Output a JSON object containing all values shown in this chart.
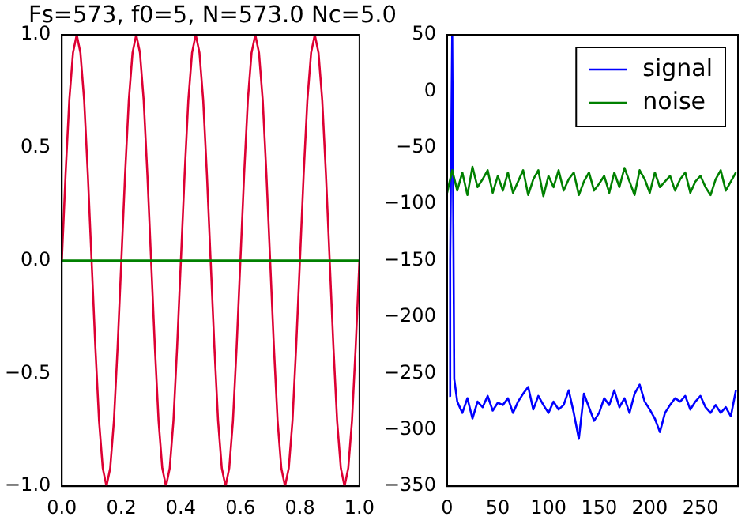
{
  "chart_data": [
    {
      "type": "line",
      "title": "Fs=573, f0=5, N=573.0 Nc=5.0",
      "xlim": [
        0,
        1
      ],
      "ylim": [
        -1,
        1
      ],
      "xticks": [
        {
          "value": 0,
          "label": "0.0"
        },
        {
          "value": 0.2,
          "label": "0.2"
        },
        {
          "value": 0.4,
          "label": "0.4"
        },
        {
          "value": 0.6,
          "label": "0.6"
        },
        {
          "value": 0.8,
          "label": "0.8"
        },
        {
          "value": 1,
          "label": "1.0"
        }
      ],
      "yticks": [
        {
          "value": -1,
          "label": "−1.0"
        },
        {
          "value": -0.5,
          "label": "−0.5"
        },
        {
          "value": 0,
          "label": "0.0"
        },
        {
          "value": 0.5,
          "label": "0.5"
        },
        {
          "value": 1,
          "label": "1.0"
        }
      ],
      "series": [
        {
          "color": "#dd0033",
          "x": [
            0,
            0.0125,
            0.025,
            0.0375,
            0.05,
            0.0625,
            0.075,
            0.0875,
            0.1,
            0.1125,
            0.125,
            0.1375,
            0.15,
            0.1625,
            0.175,
            0.1875,
            0.2,
            0.2125,
            0.225,
            0.2375,
            0.25,
            0.2625,
            0.275,
            0.2875,
            0.3,
            0.3125,
            0.325,
            0.3375,
            0.35,
            0.3625,
            0.375,
            0.3875,
            0.4,
            0.4125,
            0.425,
            0.4375,
            0.45,
            0.4625,
            0.475,
            0.4875,
            0.5,
            0.5125,
            0.525,
            0.5375,
            0.55,
            0.5625,
            0.575,
            0.5875,
            0.6,
            0.6125,
            0.625,
            0.6375,
            0.65,
            0.6625,
            0.675,
            0.6875,
            0.7,
            0.7125,
            0.725,
            0.7375,
            0.75,
            0.7625,
            0.775,
            0.7875,
            0.8,
            0.8125,
            0.825,
            0.8375,
            0.85,
            0.8625,
            0.875,
            0.8875,
            0.9,
            0.9125,
            0.925,
            0.9375,
            0.95,
            0.9625,
            0.975,
            0.9875,
            1
          ],
          "values": [
            0,
            0.38,
            0.71,
            0.92,
            1,
            0.92,
            0.71,
            0.38,
            0,
            -0.38,
            -0.71,
            -0.92,
            -1,
            -0.92,
            -0.71,
            -0.38,
            0,
            0.38,
            0.71,
            0.92,
            1,
            0.92,
            0.71,
            0.38,
            0,
            -0.38,
            -0.71,
            -0.92,
            -1,
            -0.92,
            -0.71,
            -0.38,
            0,
            0.38,
            0.71,
            0.92,
            1,
            0.92,
            0.71,
            0.38,
            0,
            -0.38,
            -0.71,
            -0.92,
            -1,
            -0.92,
            -0.71,
            -0.38,
            0,
            0.38,
            0.71,
            0.92,
            1,
            0.92,
            0.71,
            0.38,
            0,
            -0.38,
            -0.71,
            -0.92,
            -1,
            -0.92,
            -0.71,
            -0.38,
            0,
            0.38,
            0.71,
            0.92,
            1,
            0.92,
            0.71,
            0.38,
            0,
            -0.38,
            -0.71,
            -0.92,
            -1,
            -0.92,
            -0.71,
            -0.38,
            0
          ]
        },
        {
          "color": "#008000",
          "x": [
            0,
            1
          ],
          "values": [
            0,
            0
          ]
        }
      ]
    },
    {
      "type": "line",
      "legend": "top right",
      "xlim": [
        0,
        287
      ],
      "ylim": [
        -350,
        50
      ],
      "xticks": [
        0,
        50,
        100,
        150,
        200,
        250
      ],
      "yticks": [
        {
          "value": -350,
          "label": "−350"
        },
        {
          "value": -300,
          "label": "−300"
        },
        {
          "value": -250,
          "label": "−250"
        },
        {
          "value": -200,
          "label": "−200"
        },
        {
          "value": -150,
          "label": "−150"
        },
        {
          "value": -100,
          "label": "−100"
        },
        {
          "value": -50,
          "label": "−50"
        },
        0,
        50
      ],
      "series": [
        {
          "name": "signal",
          "color": "#0000ff",
          "x": [
            2,
            3,
            5,
            7,
            10,
            15,
            20,
            25,
            30,
            35,
            40,
            45,
            50,
            55,
            60,
            65,
            70,
            75,
            80,
            85,
            90,
            95,
            100,
            105,
            110,
            115,
            120,
            125,
            130,
            135,
            140,
            145,
            150,
            155,
            160,
            165,
            170,
            175,
            180,
            185,
            190,
            195,
            200,
            205,
            210,
            215,
            220,
            225,
            230,
            235,
            240,
            245,
            250,
            255,
            260,
            265,
            270,
            275,
            280,
            285
          ],
          "values": [
            -270,
            -150,
            50,
            -255,
            -275,
            -285,
            -272,
            -290,
            -275,
            -280,
            -270,
            -283,
            -276,
            -278,
            -272,
            -285,
            -275,
            -268,
            -262,
            -282,
            -270,
            -278,
            -285,
            -275,
            -282,
            -278,
            -265,
            -285,
            -308,
            -268,
            -280,
            -292,
            -285,
            -272,
            -278,
            -265,
            -280,
            -272,
            -285,
            -268,
            -260,
            -275,
            -282,
            -290,
            -302,
            -285,
            -278,
            -272,
            -275,
            -270,
            -282,
            -275,
            -270,
            -280,
            -285,
            -278,
            -285,
            -280,
            -288,
            -265
          ]
        },
        {
          "name": "noise",
          "color": "#008000",
          "x": [
            0,
            5,
            10,
            15,
            20,
            25,
            30,
            35,
            40,
            45,
            50,
            55,
            60,
            65,
            70,
            75,
            80,
            85,
            90,
            95,
            100,
            105,
            110,
            115,
            120,
            125,
            130,
            135,
            140,
            145,
            150,
            155,
            160,
            165,
            170,
            175,
            180,
            185,
            190,
            195,
            200,
            205,
            210,
            215,
            220,
            225,
            230,
            235,
            240,
            245,
            250,
            255,
            260,
            265,
            270,
            275,
            280,
            285
          ],
          "values": [
            -90,
            -70,
            -88,
            -72,
            -92,
            -67,
            -85,
            -78,
            -70,
            -90,
            -75,
            -88,
            -72,
            -90,
            -80,
            -70,
            -92,
            -78,
            -70,
            -93,
            -75,
            -85,
            -70,
            -88,
            -78,
            -72,
            -92,
            -80,
            -72,
            -88,
            -82,
            -75,
            -90,
            -72,
            -85,
            -68,
            -80,
            -92,
            -70,
            -78,
            -90,
            -72,
            -85,
            -80,
            -75,
            -88,
            -78,
            -72,
            -90,
            -80,
            -75,
            -85,
            -92,
            -78,
            -70,
            -88,
            -80,
            -72
          ]
        }
      ]
    }
  ]
}
